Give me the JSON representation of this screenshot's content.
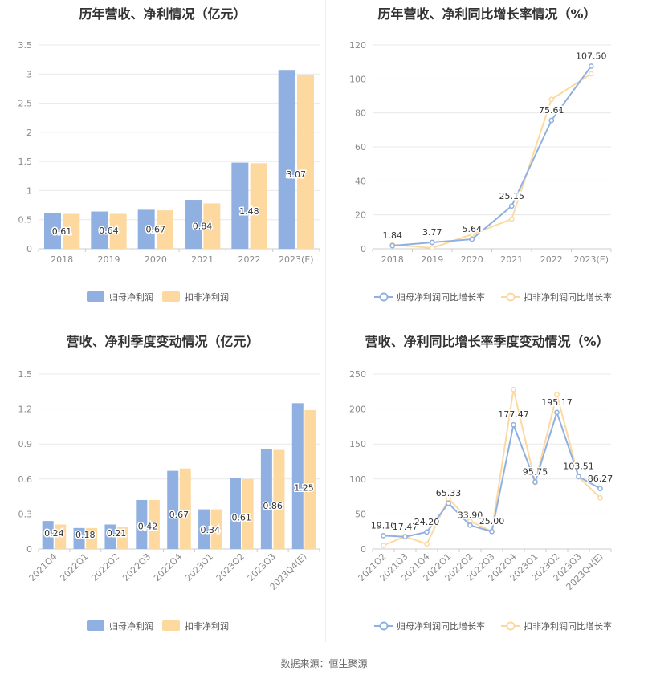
{
  "source_label": "数据来源：恒生聚源",
  "colors": {
    "series1": "#8fb0e0",
    "series2": "#fdd9a0",
    "grid": "#e8e8e8",
    "axis": "#cccccc"
  },
  "chart_data": [
    {
      "type": "bar",
      "title": "历年营收、净利情况（亿元）",
      "categories": [
        "2018",
        "2019",
        "2020",
        "2021",
        "2022",
        "2023(E)"
      ],
      "series": [
        {
          "name": "归母净利润",
          "values": [
            0.61,
            0.64,
            0.67,
            0.84,
            1.48,
            3.07
          ],
          "labels": [
            "0.61",
            "0.64",
            "0.67",
            "0.84",
            "1.48",
            "3.07"
          ]
        },
        {
          "name": "扣非净利润",
          "values": [
            0.6,
            0.6,
            0.66,
            0.78,
            1.47,
            2.99
          ]
        }
      ],
      "ylim": [
        0,
        3.5
      ],
      "yticks": [
        "0",
        "0.5",
        "1",
        "1.5",
        "2",
        "2.5",
        "3",
        "3.5"
      ],
      "grid": true,
      "legend": "bottom"
    },
    {
      "type": "line",
      "title": "历年营收、净利同比增长率情况（%）",
      "categories": [
        "2018",
        "2019",
        "2020",
        "2021",
        "2022",
        "2023(E)"
      ],
      "series": [
        {
          "name": "归母净利润同比增长率",
          "values": [
            1.84,
            3.77,
            5.64,
            25.15,
            75.61,
            107.5
          ],
          "labels": [
            "1.84",
            "3.77",
            "5.64",
            "25.15",
            "75.61",
            "107.50"
          ]
        },
        {
          "name": "扣非净利润同比增长率",
          "values": [
            2.5,
            0.5,
            8.5,
            17.5,
            88,
            103
          ]
        }
      ],
      "ylim": [
        0,
        120
      ],
      "yticks": [
        "0",
        "20",
        "40",
        "60",
        "80",
        "100",
        "120"
      ],
      "grid": true,
      "legend": "bottom"
    },
    {
      "type": "bar",
      "title": "营收、净利季度变动情况（亿元）",
      "categories": [
        "2021Q4",
        "2022Q1",
        "2022Q2",
        "2022Q3",
        "2022Q4",
        "2023Q1",
        "2023Q2",
        "2023Q3",
        "2023Q4(E)"
      ],
      "series": [
        {
          "name": "归母净利润",
          "values": [
            0.24,
            0.18,
            0.21,
            0.42,
            0.67,
            0.34,
            0.61,
            0.86,
            1.25
          ],
          "labels": [
            "0.24",
            "0.18",
            "0.21",
            "0.42",
            "0.67",
            "0.34",
            "0.61",
            "0.86",
            "1.25"
          ]
        },
        {
          "name": "扣非净利润",
          "values": [
            0.21,
            0.18,
            0.19,
            0.42,
            0.69,
            0.34,
            0.6,
            0.85,
            1.19
          ]
        }
      ],
      "ylim": [
        0,
        1.5
      ],
      "yticks": [
        "0",
        "0.3",
        "0.6",
        "0.9",
        "1.2",
        "1.5"
      ],
      "grid": true,
      "legend": "bottom"
    },
    {
      "type": "line",
      "title": "营收、净利同比增长率季度变动情况（%）",
      "categories": [
        "2021Q2",
        "2021Q3",
        "2021Q4",
        "2022Q1",
        "2022Q2",
        "2022Q3",
        "2022Q4",
        "2023Q1",
        "2023Q2",
        "2023Q3",
        "2023Q4(E)"
      ],
      "series": [
        {
          "name": "归母净利润同比增长率",
          "values": [
            19.1,
            17.47,
            24.2,
            65.33,
            33.9,
            25.0,
            177.47,
            95.75,
            195.17,
            103.51,
            86.27
          ],
          "labels": [
            "19.10",
            "17.47",
            "24.20",
            "65.33",
            "33.90",
            "25.00",
            "177.47",
            "95.75",
            "195.17",
            "103.51",
            "86.27"
          ]
        },
        {
          "name": "扣非净利润同比增长率",
          "values": [
            5,
            18,
            7,
            72,
            40,
            25,
            228,
            95,
            221,
            103,
            73
          ]
        }
      ],
      "ylim": [
        0,
        250
      ],
      "yticks": [
        "0",
        "50",
        "100",
        "150",
        "200",
        "250"
      ],
      "grid": true,
      "legend": "bottom"
    }
  ]
}
